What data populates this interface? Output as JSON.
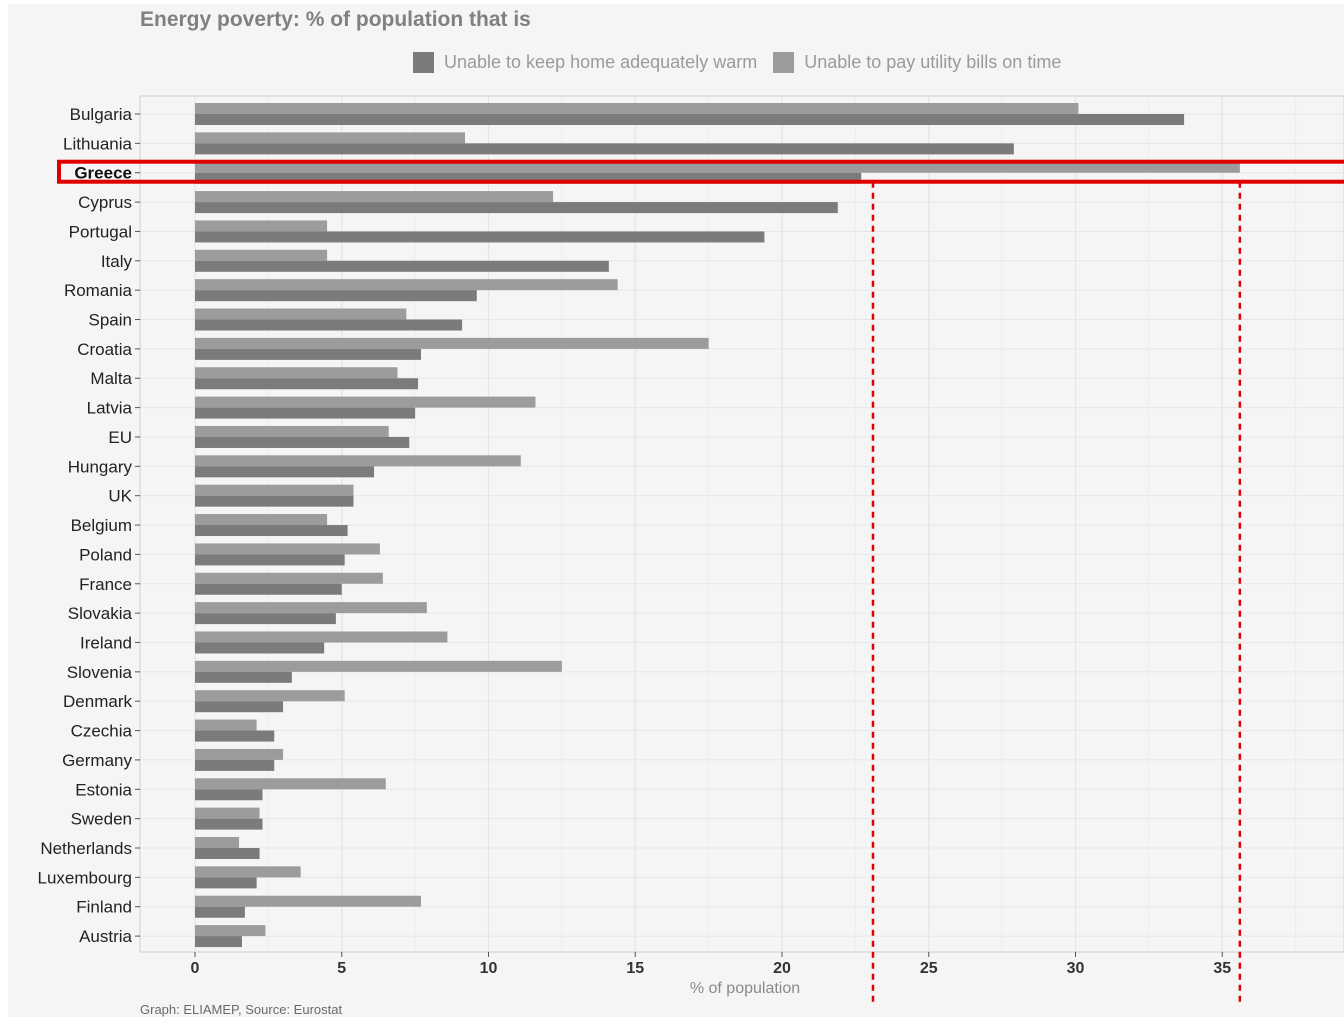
{
  "chart_data": {
    "type": "bar",
    "orientation": "horizontal",
    "title": "Energy poverty: % of population that is",
    "xlabel": "% of population",
    "ylabel": "",
    "xlim": [
      -2,
      39
    ],
    "x_ticks": [
      0,
      5,
      10,
      15,
      20,
      25,
      30,
      35
    ],
    "grid": true,
    "legend_position": "top",
    "caption": "Graph: ELIAMEP, Source: Eurostat",
    "highlight_category": "Greece",
    "reference_lines": [
      23.1,
      35.6
    ],
    "categories": [
      "Bulgaria",
      "Lithuania",
      "Greece",
      "Cyprus",
      "Portugal",
      "Italy",
      "Romania",
      "Spain",
      "Croatia",
      "Malta",
      "Latvia",
      "EU",
      "Hungary",
      "UK",
      "Belgium",
      "Poland",
      "France",
      "Slovakia",
      "Ireland",
      "Slovenia",
      "Denmark",
      "Czechia",
      "Germany",
      "Estonia",
      "Sweden",
      "Netherlands",
      "Luxembourg",
      "Finland",
      "Austria"
    ],
    "series": [
      {
        "name": "Unable to keep home adequately warm",
        "color": "#7b7b7b",
        "values": [
          33.7,
          27.9,
          22.7,
          21.9,
          19.4,
          14.1,
          9.6,
          9.1,
          7.7,
          7.6,
          7.5,
          7.3,
          6.1,
          5.4,
          5.2,
          5.1,
          5.0,
          4.8,
          4.4,
          3.3,
          3.0,
          2.7,
          2.7,
          2.3,
          2.3,
          2.2,
          2.1,
          1.7,
          1.6
        ]
      },
      {
        "name": "Unable to pay utility bills on time",
        "color": "#9c9c9c",
        "values": [
          30.1,
          9.2,
          35.6,
          12.2,
          4.5,
          4.5,
          14.4,
          7.2,
          17.5,
          6.9,
          11.6,
          6.6,
          11.1,
          5.4,
          4.5,
          6.3,
          6.4,
          7.9,
          8.6,
          12.5,
          5.1,
          2.1,
          3.0,
          6.5,
          2.2,
          1.5,
          3.6,
          7.7,
          2.4
        ]
      }
    ]
  }
}
